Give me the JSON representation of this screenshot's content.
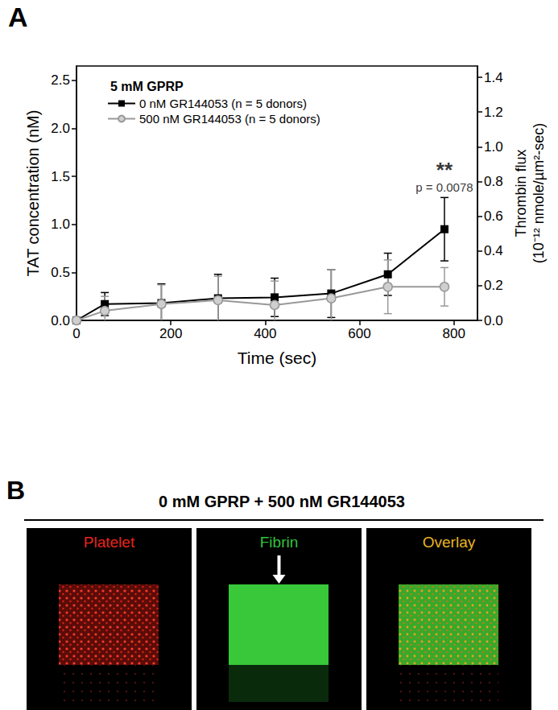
{
  "chart_data": {
    "type": "line",
    "panel_label": "A",
    "legend_title": "5 mM GPRP",
    "legend": "upper left",
    "x_label": "Time (sec)",
    "y_label": "TAT concentration (nM)",
    "y2_label": [
      "Thrombin flux",
      "(10⁻¹² nmole/µm²-sec)"
    ],
    "x": [
      0,
      60,
      180,
      300,
      420,
      540,
      660,
      780
    ],
    "series": [
      {
        "name": "0 nM GR144053 (n = 5 donors)",
        "color": "#000000",
        "marker": "square",
        "values": [
          0,
          0.17,
          0.18,
          0.23,
          0.24,
          0.28,
          0.48,
          0.95
        ],
        "errors": [
          0,
          0.12,
          0.2,
          0.25,
          0.2,
          0.25,
          0.22,
          0.33
        ]
      },
      {
        "name": "500 nM GR144053 (n = 5 donors)",
        "color": "#999999",
        "marker": "circle",
        "values": [
          0,
          0.1,
          0.17,
          0.21,
          0.16,
          0.23,
          0.35,
          0.35
        ],
        "errors": [
          0,
          0.15,
          0.2,
          0.25,
          0.25,
          0.3,
          0.28,
          0.2
        ]
      }
    ],
    "xlim": [
      0,
      850
    ],
    "xticks": [
      0,
      200,
      400,
      600,
      800
    ],
    "ylim": [
      0,
      2.65
    ],
    "yticks": [
      {
        "value": 0,
        "label": "0.0"
      },
      0.5,
      {
        "value": 1,
        "label": "1.0"
      },
      1.5,
      {
        "value": 2,
        "label": "2.0"
      },
      2.5
    ],
    "y2lim": [
      0,
      1.465
    ],
    "y2ticks": [
      {
        "value": 0,
        "label": "0.0"
      },
      0.2,
      0.4,
      0.6,
      0.8,
      {
        "value": 1,
        "label": "1.0"
      },
      1.2,
      1.4
    ],
    "grid": false,
    "annotation": {
      "texts": [
        "**",
        "p = 0.0078"
      ],
      "x": 780,
      "series": 0
    }
  },
  "panel_b": {
    "label": "B",
    "title": "0 mM GPRP + 500 nM GR144053",
    "images": [
      {
        "label": "Platelet",
        "color": "#e8231c"
      },
      {
        "label": "Fibrin",
        "color": "#2fc43a"
      },
      {
        "label": "Overlay",
        "color": "#e8b423"
      }
    ]
  }
}
